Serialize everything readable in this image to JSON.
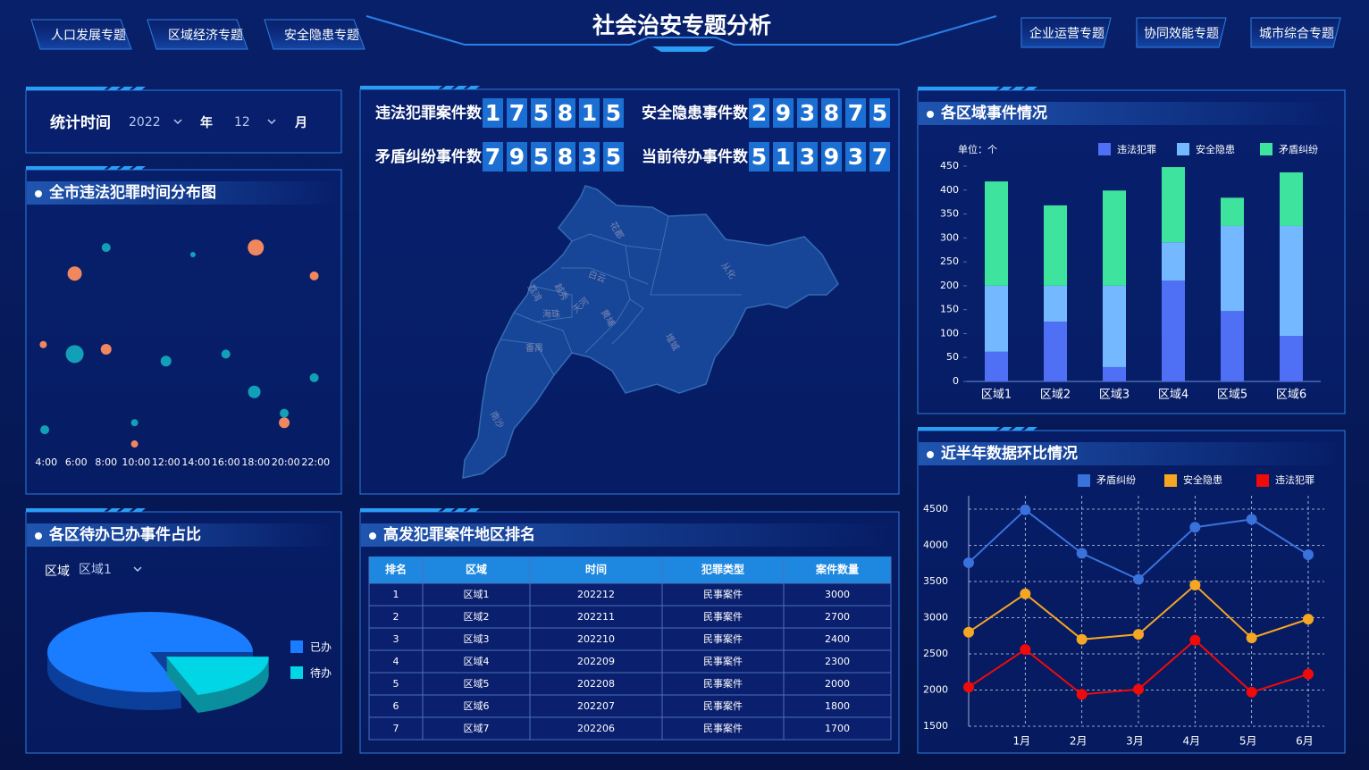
{
  "header": {
    "title": "社会治安专题分析",
    "nav_left": [
      "人口发展专题",
      "区域经济专题",
      "安全隐患专题"
    ],
    "nav_right": [
      "企业运营专题",
      "协同效能专题",
      "城市综合专题"
    ]
  },
  "filter": {
    "label": "统计时间",
    "year": "2022",
    "year_unit": "年",
    "month": "12",
    "month_unit": "月"
  },
  "stats": [
    {
      "label": "违法犯罪案件数",
      "digits": [
        1,
        7,
        5,
        8,
        1,
        5
      ]
    },
    {
      "label": "安全隐患事件数",
      "digits": [
        2,
        9,
        3,
        8,
        7,
        5
      ]
    },
    {
      "label": "矛盾纠纷事件数",
      "digits": [
        7,
        9,
        5,
        8,
        3,
        5
      ]
    },
    {
      "label": "当前待办事件数",
      "digits": [
        5,
        1,
        3,
        9,
        3,
        7
      ]
    }
  ],
  "map": {
    "regions": [
      "花都",
      "从化",
      "白云",
      "增城",
      "黄埔",
      "天河",
      "越秀",
      "荔湾",
      "海珠",
      "番禺",
      "南沙"
    ]
  },
  "table": {
    "title": "高发犯罪案件地区排名",
    "columns": [
      "排名",
      "区域",
      "时间",
      "犯罪类型",
      "案件数量"
    ],
    "rows": [
      [
        1,
        "区域1",
        202212,
        "民事案件",
        3000
      ],
      [
        2,
        "区域2",
        202211,
        "民事案件",
        2700
      ],
      [
        3,
        "区域3",
        202210,
        "民事案件",
        2400
      ],
      [
        4,
        "区域4",
        202209,
        "民事案件",
        2300
      ],
      [
        5,
        "区域5",
        202208,
        "民事案件",
        2000
      ],
      [
        6,
        "区域6",
        202207,
        "民事案件",
        1800
      ],
      [
        7,
        "区域7",
        202206,
        "民事案件",
        1700
      ]
    ]
  },
  "chart_data": [
    {
      "type": "scatter",
      "title": "全市违法犯罪时间分布图",
      "xlim": [
        3,
        23
      ],
      "ylim": [
        0,
        100
      ],
      "xticks": [
        {
          "value": 4,
          "label": "4:00"
        },
        {
          "value": 6,
          "label": "6:00"
        },
        {
          "value": 8,
          "label": "8:00"
        },
        {
          "value": 10,
          "label": "10:00"
        },
        {
          "value": 12,
          "label": "12:00"
        },
        {
          "value": 14,
          "label": "14:00"
        },
        {
          "value": 16,
          "label": "16:00"
        },
        {
          "value": 18,
          "label": "18:00"
        },
        {
          "value": 20,
          "label": "20:00"
        },
        {
          "value": 22,
          "label": "22:00"
        }
      ],
      "series": [
        {
          "color": "#f0875f",
          "x": [
            5.9,
            18.0,
            21.9,
            3.8,
            8.0,
            19.9,
            9.9
          ],
          "values": [
            75,
            86,
            74,
            45,
            43,
            12,
            3
          ],
          "sizes": [
            8,
            9,
            5,
            4,
            6,
            6,
            4
          ]
        },
        {
          "color": "#12a0b8",
          "x": [
            8.0,
            13.8,
            5.9,
            12.0,
            16.0,
            17.9,
            21.9,
            9.9,
            19.9,
            3.9
          ],
          "values": [
            86,
            83,
            41,
            38,
            41,
            25,
            31,
            12,
            16,
            9
          ],
          "sizes": [
            5,
            3,
            10,
            6,
            5,
            7,
            5,
            4,
            5,
            5
          ]
        }
      ]
    },
    {
      "type": "pie",
      "title": "各区待办已办事件占比",
      "filter_label": "区域",
      "filter_value": "区域1",
      "categories": [
        "已办",
        "待办"
      ],
      "values": [
        80,
        20
      ],
      "colors": [
        "#1a7cff",
        "#00d6e6"
      ]
    },
    {
      "type": "bar",
      "title": "各区域事件情况",
      "unit": "单位：个",
      "stacked": true,
      "categories": [
        "区域1",
        "区域2",
        "区域3",
        "区域4",
        "区域5",
        "区域6"
      ],
      "series": [
        {
          "name": "违法犯罪",
          "color": "#4f6ff5",
          "values": [
            62,
            125,
            30,
            211,
            147,
            95
          ]
        },
        {
          "name": "安全隐患",
          "color": "#74b9ff",
          "values": [
            138,
            75,
            170,
            80,
            178,
            230
          ]
        },
        {
          "name": "矛盾纠纷",
          "color": "#3ee39e",
          "values": [
            218,
            168,
            199,
            157,
            59,
            112
          ]
        }
      ],
      "ylim": [
        0,
        450
      ],
      "yticks": [
        0,
        50,
        100,
        150,
        200,
        250,
        300,
        350,
        400,
        450
      ]
    },
    {
      "type": "line",
      "title": "近半年数据环比情况",
      "categories": [
        null,
        "1月",
        "2月",
        "3月",
        "4月",
        "5月",
        "6月"
      ],
      "series": [
        {
          "name": "矛盾纠纷",
          "color": "#3a72dc",
          "values": [
            3760,
            4490,
            3890,
            3530,
            4250,
            4360,
            3870
          ]
        },
        {
          "name": "安全隐患",
          "color": "#f5a623",
          "values": [
            2800,
            3330,
            2700,
            2770,
            3450,
            2720,
            2980
          ]
        },
        {
          "name": "违法犯罪",
          "color": "#f00a0a",
          "values": [
            2040,
            2560,
            1940,
            2010,
            2690,
            1970,
            2220
          ]
        }
      ],
      "ylim": [
        1500,
        4500
      ],
      "yticks": [
        1500,
        2000,
        2500,
        3000,
        3500,
        4000,
        4500
      ],
      "grid": true
    }
  ]
}
